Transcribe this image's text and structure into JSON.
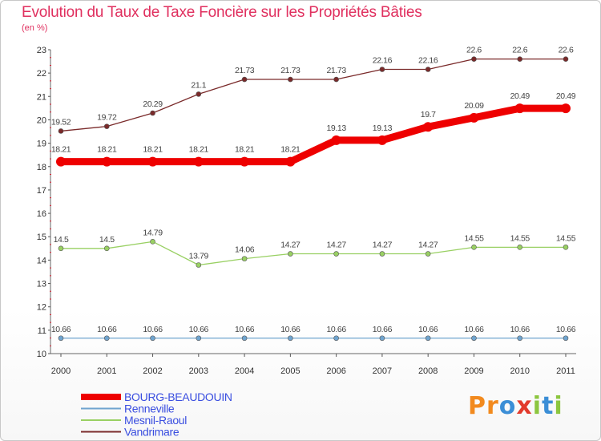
{
  "title": "Evolution du Taux de Taxe Foncière sur les Propriétés Bâties",
  "subtitle": "(en %)",
  "logo": {
    "letters": [
      {
        "ch": "P",
        "color": "#f28a1e"
      },
      {
        "ch": "r",
        "color": "#f28a1e"
      },
      {
        "ch": "o",
        "color": "#3b8ed6"
      },
      {
        "ch": "x",
        "color": "#e23a2c"
      },
      {
        "ch": "i",
        "color": "#8cc63f"
      },
      {
        "ch": "t",
        "color": "#3b8ed6"
      },
      {
        "ch": "i",
        "color": "#8cc63f"
      }
    ]
  },
  "chart_data": {
    "type": "line",
    "title": "Evolution du Taux de Taxe Foncière sur les Propriétés Bâties",
    "ylabel": "(en %)",
    "xlabel": "",
    "ylim": [
      10,
      23
    ],
    "grid": false,
    "yticks": [
      "10",
      "11",
      "12",
      "13",
      "14",
      "15",
      "16",
      "17",
      "18",
      "19",
      "20",
      "21",
      "22",
      "23"
    ],
    "categories": [
      "2000",
      "2001",
      "2002",
      "2003",
      "2004",
      "2005",
      "2006",
      "2007",
      "2008",
      "2009",
      "2010",
      "2011"
    ],
    "series": [
      {
        "name": "BOURG-BEAUDOUIN",
        "color": "#ee0000",
        "bold": true,
        "values": [
          18.21,
          18.21,
          18.21,
          18.21,
          18.21,
          18.21,
          19.13,
          19.13,
          19.7,
          20.09,
          20.49,
          20.49
        ],
        "labels": [
          "18.21",
          "18.21",
          "18.21",
          "18.21",
          "18.21",
          "18.21",
          "19.13",
          "19.13",
          "19.7",
          "20.09",
          "20.49",
          "20.49"
        ]
      },
      {
        "name": "Renneville",
        "color": "#6fa4cf",
        "bold": false,
        "values": [
          10.66,
          10.66,
          10.66,
          10.66,
          10.66,
          10.66,
          10.66,
          10.66,
          10.66,
          10.66,
          10.66,
          10.66
        ],
        "labels": [
          "10.66",
          "10.66",
          "10.66",
          "10.66",
          "10.66",
          "10.66",
          "10.66",
          "10.66",
          "10.66",
          "10.66",
          "10.66",
          "10.66"
        ]
      },
      {
        "name": "Mesnil-Raoul",
        "color": "#99d063",
        "bold": false,
        "values": [
          14.5,
          14.5,
          14.79,
          13.79,
          14.06,
          14.27,
          14.27,
          14.27,
          14.27,
          14.55,
          14.55,
          14.55
        ],
        "labels": [
          "14.5",
          "14.5",
          "14.79",
          "13.79",
          "14.06",
          "14.27",
          "14.27",
          "14.27",
          "14.27",
          "14.55",
          "14.55",
          "14.55"
        ]
      },
      {
        "name": "Vandrimare",
        "color": "#7a2a2a",
        "bold": false,
        "values": [
          19.52,
          19.72,
          20.29,
          21.1,
          21.73,
          21.73,
          21.73,
          22.16,
          22.16,
          22.6,
          22.6,
          22.6
        ],
        "labels": [
          "19.52",
          "19.72",
          "20.29",
          "21.1",
          "21.73",
          "21.73",
          "21.73",
          "22.16",
          "22.16",
          "22.6",
          "22.6",
          "22.6"
        ]
      }
    ],
    "legend": {
      "position": "bottom-left",
      "label_color": "#3a4ee0"
    }
  }
}
